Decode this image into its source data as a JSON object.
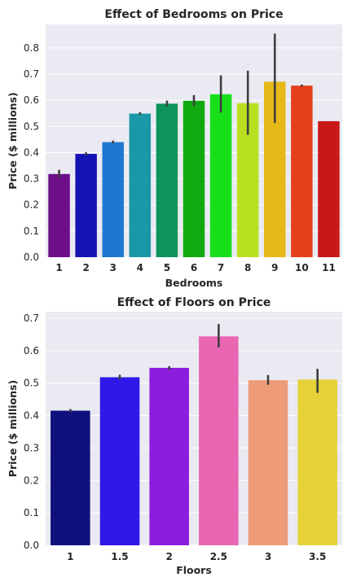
{
  "chart_data": [
    {
      "type": "bar",
      "title": "Effect of Bedrooms on Price",
      "xlabel": "Bedrooms",
      "ylabel": "Price ($ millions)",
      "ylim": [
        0,
        0.89
      ],
      "yticks": [
        0.0,
        0.1,
        0.2,
        0.3,
        0.4,
        0.5,
        0.6,
        0.7,
        0.8
      ],
      "ytick_labels": [
        "0.0",
        "0.1",
        "0.2",
        "0.3",
        "0.4",
        "0.5",
        "0.6",
        "0.7",
        "0.8"
      ],
      "categories": [
        "1",
        "2",
        "3",
        "4",
        "5",
        "6",
        "7",
        "8",
        "9",
        "10",
        "11"
      ],
      "values": [
        0.318,
        0.395,
        0.44,
        0.549,
        0.587,
        0.598,
        0.623,
        0.589,
        0.671,
        0.656,
        0.52
      ],
      "error_low": [
        0.303,
        0.389,
        0.435,
        0.544,
        0.576,
        0.578,
        0.553,
        0.468,
        0.513,
        0.652,
        0.52
      ],
      "error_high": [
        0.334,
        0.401,
        0.446,
        0.554,
        0.599,
        0.62,
        0.695,
        0.713,
        0.855,
        0.66,
        0.52
      ],
      "colors": [
        "#6e0f8a",
        "#1414b4",
        "#1e78d2",
        "#1898a8",
        "#0c945a",
        "#10aa10",
        "#18e018",
        "#b8e020",
        "#e6b818",
        "#e4401a",
        "#c81818"
      ],
      "grid": true
    },
    {
      "type": "bar",
      "title": "Effect of Floors on Price",
      "xlabel": "Floors",
      "ylabel": "Price ($ millions)",
      "ylim": [
        0,
        0.72
      ],
      "yticks": [
        0.0,
        0.1,
        0.2,
        0.3,
        0.4,
        0.5,
        0.6,
        0.7
      ],
      "ytick_labels": [
        "0.0",
        "0.1",
        "0.2",
        "0.3",
        "0.4",
        "0.5",
        "0.6",
        "0.7"
      ],
      "categories": [
        "1",
        "1.5",
        "2",
        "2.5",
        "3",
        "3.5"
      ],
      "values": [
        0.415,
        0.518,
        0.547,
        0.644,
        0.509,
        0.511
      ],
      "error_low": [
        0.411,
        0.511,
        0.542,
        0.61,
        0.495,
        0.47
      ],
      "error_high": [
        0.42,
        0.526,
        0.552,
        0.682,
        0.525,
        0.544
      ],
      "colors": [
        "#10107e",
        "#3018e8",
        "#8a1edc",
        "#e866b2",
        "#ee9c78",
        "#e4d238"
      ],
      "grid": true
    }
  ]
}
